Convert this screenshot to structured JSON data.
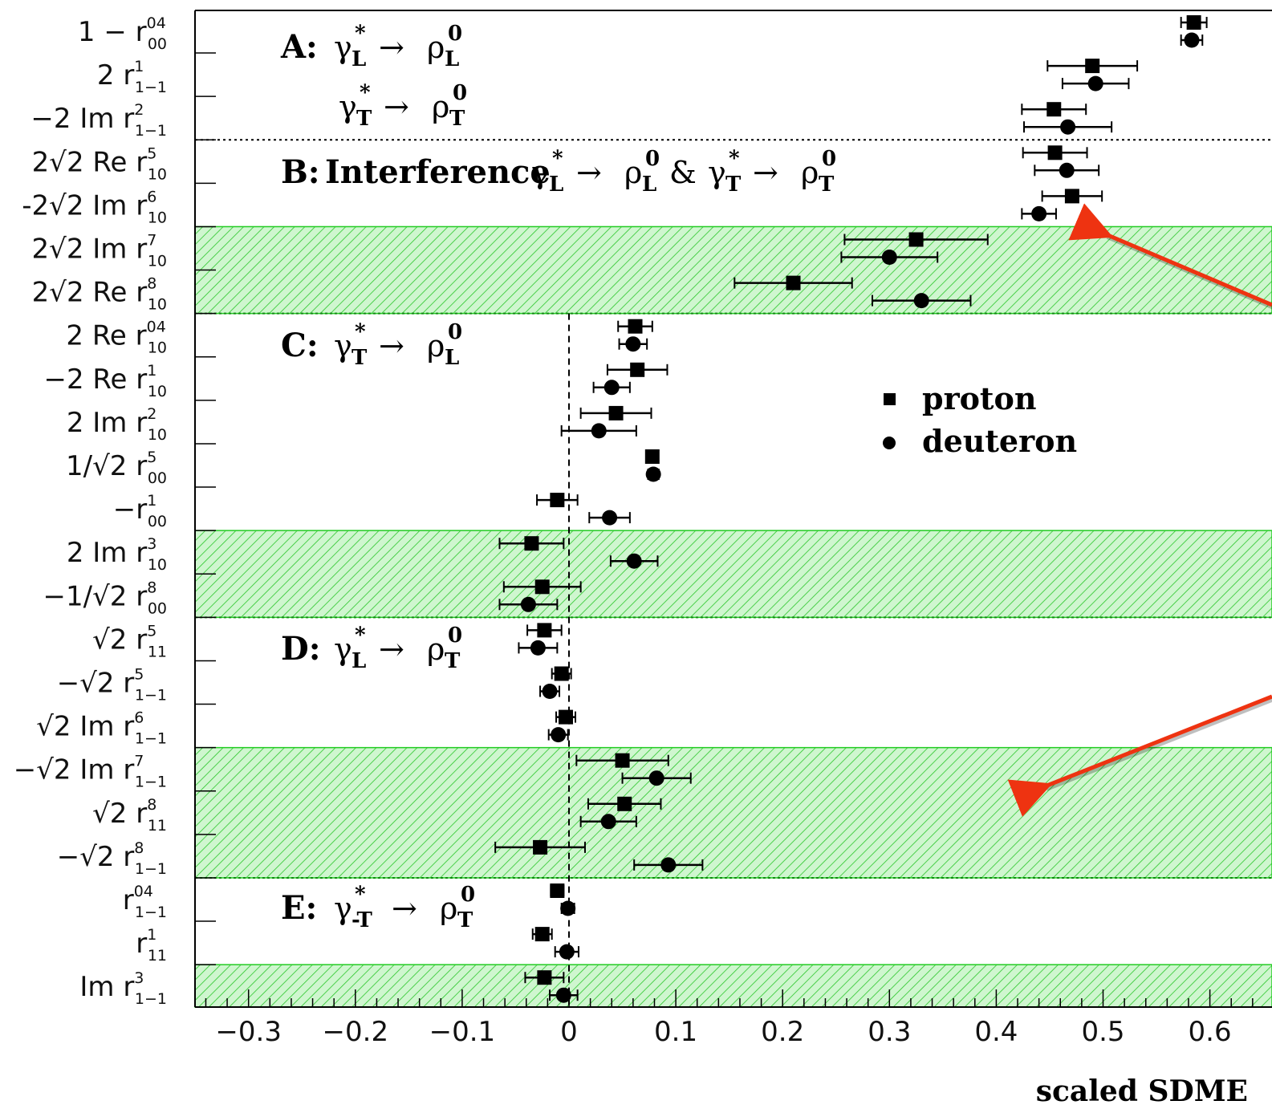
{
  "chart_data": {
    "type": "scatter",
    "xlabel": "scaled SDME",
    "xlim": [
      -0.35,
      0.65
    ],
    "x_ticks": [
      "−0.3",
      "−0.2",
      "−0.1",
      "0",
      "0.1",
      "0.2",
      "0.3",
      "0.4",
      "0.5",
      "0.6"
    ],
    "x_tick_values": [
      -0.3,
      -0.2,
      -0.1,
      0,
      0.1,
      0.2,
      0.3,
      0.4,
      0.5,
      0.6
    ],
    "legend": {
      "placement": "center-right",
      "entries": [
        {
          "name": "proton",
          "marker": "square"
        },
        {
          "name": "deuteron",
          "marker": "circle"
        }
      ]
    },
    "sections": [
      {
        "letter": "A:",
        "line1": {
          "from": "γ",
          "from_sup": "*",
          "from_sub": "L",
          "arrow": "→",
          "to": "ρ",
          "to_sup": "0",
          "to_sub": "L"
        },
        "line2": {
          "from": "γ",
          "from_sup": "*",
          "from_sub": "T",
          "arrow": "→",
          "to": "ρ",
          "to_sup": "0",
          "to_sub": "T"
        }
      },
      {
        "letter": "B:",
        "prefix": "Interference",
        "line1": {
          "from": "γ",
          "from_sup": "*",
          "from_sub": "L",
          "arrow": "→",
          "to": "ρ",
          "to_sup": "0",
          "to_sub": "L",
          "amp": "&",
          "from2": "γ",
          "from2_sup": "*",
          "from2_sub": "T",
          "arrow2": "→",
          "to2": "ρ",
          "to2_sup": "0",
          "to2_sub": "T"
        }
      },
      {
        "letter": "C:",
        "line1": {
          "from": "γ",
          "from_sup": "*",
          "from_sub": "T",
          "arrow": "→",
          "to": "ρ",
          "to_sup": "0",
          "to_sub": "L"
        }
      },
      {
        "letter": "D:",
        "line1": {
          "from": "γ",
          "from_sup": "*",
          "from_sub": "L",
          "arrow": "→",
          "to": "ρ",
          "to_sup": "0",
          "to_sub": "T"
        }
      },
      {
        "letter": "E:",
        "line1": {
          "from": "γ",
          "from_sup": "*",
          "from_sub": "-T",
          "arrow": "→",
          "to": "ρ",
          "to_sup": "0",
          "to_sub": "T"
        }
      }
    ],
    "rows": [
      {
        "pre": "1 − r",
        "sup": "04",
        "sub": "00",
        "proton": [
          0.585,
          0.012
        ],
        "deuteron": [
          0.583,
          0.01
        ]
      },
      {
        "pre": "2 r",
        "sup": "1",
        "sub": "1−1",
        "proton": [
          0.49,
          0.042
        ],
        "deuteron": [
          0.493,
          0.031
        ]
      },
      {
        "pre": "−2 Im r",
        "sup": "2",
        "sub": "1−1",
        "proton": [
          0.454,
          0.03
        ],
        "deuteron": [
          0.467,
          0.041
        ]
      },
      {
        "pre": "2√2 Re r",
        "sup": "5",
        "sub": "10",
        "proton": [
          0.455,
          0.03
        ],
        "deuteron": [
          0.466,
          0.03
        ]
      },
      {
        "pre": "-2√2 Im r",
        "sup": "6",
        "sub": "10",
        "proton": [
          0.471,
          0.028
        ],
        "deuteron": [
          0.44,
          0.016
        ]
      },
      {
        "pre": "2√2 Im r",
        "sup": "7",
        "sub": "10",
        "proton": [
          0.325,
          0.067
        ],
        "deuteron": [
          0.3,
          0.045
        ],
        "hatched": true
      },
      {
        "pre": "2√2 Re r",
        "sup": "8",
        "sub": "10",
        "proton": [
          0.21,
          0.055
        ],
        "deuteron": [
          0.33,
          0.046
        ],
        "hatched": true
      },
      {
        "pre": "2 Re r",
        "sup": "04",
        "sub": "10",
        "proton": [
          0.062,
          0.016
        ],
        "deuteron": [
          0.06,
          0.013
        ]
      },
      {
        "pre": "−2 Re r",
        "sup": "1",
        "sub": "10",
        "proton": [
          0.064,
          0.028
        ],
        "deuteron": [
          0.04,
          0.017
        ]
      },
      {
        "pre": "2 Im r",
        "sup": "2",
        "sub": "10",
        "proton": [
          0.044,
          0.033
        ],
        "deuteron": [
          0.028,
          0.035
        ]
      },
      {
        "pre": "1/√2 r",
        "sup": "5",
        "sub": "00",
        "proton": [
          0.078,
          0.005
        ],
        "deuteron": [
          0.079,
          0.005
        ]
      },
      {
        "pre": "−r",
        "sup": "1",
        "sub": "00",
        "proton": [
          -0.011,
          0.019
        ],
        "deuteron": [
          0.038,
          0.019
        ]
      },
      {
        "pre": "2 Im r",
        "sup": "3",
        "sub": "10",
        "proton": [
          -0.035,
          0.03
        ],
        "deuteron": [
          0.061,
          0.022
        ],
        "hatched": true
      },
      {
        "pre": "−1/√2 r",
        "sup": "8",
        "sub": "00",
        "proton": [
          -0.025,
          0.036
        ],
        "deuteron": [
          -0.038,
          0.027
        ],
        "hatched": true
      },
      {
        "pre": "√2 r",
        "sup": "5",
        "sub": "11",
        "proton": [
          -0.023,
          0.016
        ],
        "deuteron": [
          -0.029,
          0.018
        ]
      },
      {
        "pre": "−√2 r",
        "sup": "5",
        "sub": "1−1",
        "proton": [
          -0.007,
          0.009
        ],
        "deuteron": [
          -0.018,
          0.009
        ]
      },
      {
        "pre": "√2 Im r",
        "sup": "6",
        "sub": "1−1",
        "proton": [
          -0.003,
          0.009
        ],
        "deuteron": [
          -0.01,
          0.009
        ]
      },
      {
        "pre": "−√2 Im r",
        "sup": "7",
        "sub": "1−1",
        "proton": [
          0.05,
          0.043
        ],
        "deuteron": [
          0.082,
          0.032
        ],
        "hatched": true
      },
      {
        "pre": "√2 r",
        "sup": "8",
        "sub": "11",
        "proton": [
          0.052,
          0.034
        ],
        "deuteron": [
          0.037,
          0.026
        ],
        "hatched": true
      },
      {
        "pre": "−√2 r",
        "sup": "8",
        "sub": "1−1",
        "proton": [
          -0.027,
          0.042
        ],
        "deuteron": [
          0.093,
          0.032
        ],
        "hatched": true
      },
      {
        "pre": "r",
        "sup": "04",
        "sub": "1−1",
        "proton": [
          -0.011,
          0.006
        ],
        "deuteron": [
          -0.001,
          0.006
        ]
      },
      {
        "pre": "r",
        "sup": "1",
        "sub": "11",
        "proton": [
          -0.025,
          0.009
        ],
        "deuteron": [
          -0.002,
          0.011
        ]
      },
      {
        "pre": "Im r",
        "sup": "3",
        "sub": "1−1",
        "proton": [
          -0.023,
          0.018
        ],
        "deuteron": [
          -0.005,
          0.013
        ],
        "hatched": true
      }
    ],
    "dashed_reference_x": 0,
    "colors": {
      "hatch": "#1ec21e",
      "band_fill": "#ccf5cc",
      "arrow": "#ee3311",
      "markers": "#000000"
    }
  }
}
